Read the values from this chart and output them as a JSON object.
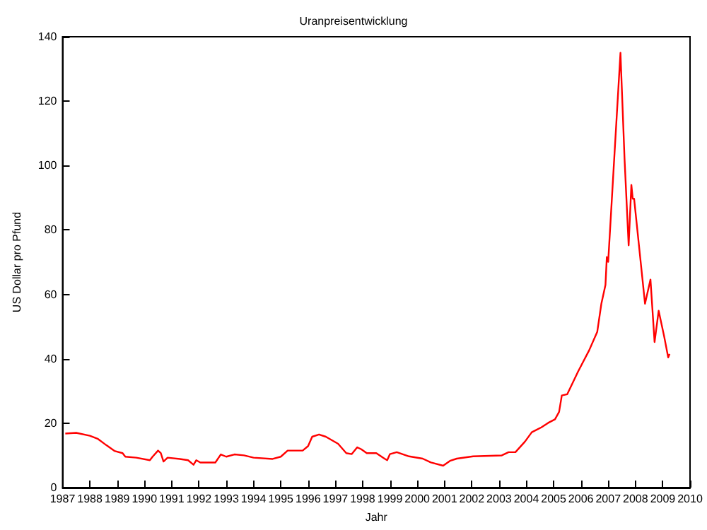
{
  "chart_data": {
    "type": "line",
    "title": "Uranpreisentwicklung",
    "xlabel": "Jahr",
    "ylabel": "US Dollar pro Pfund",
    "xlim": [
      1987,
      2010
    ],
    "xticks": [
      1987,
      1988,
      1989,
      1990,
      1991,
      1992,
      1993,
      1994,
      1995,
      1996,
      1997,
      1998,
      1999,
      2000,
      2001,
      2002,
      2003,
      2004,
      2005,
      2006,
      2007,
      2008,
      2009,
      2010
    ],
    "ylim": [
      0,
      140
    ],
    "yticks": [
      0,
      20,
      40,
      60,
      80,
      100,
      120,
      140
    ],
    "grid": false,
    "marker": "none",
    "line_style": "solid",
    "series": [
      {
        "color": "#ff0000",
        "x": [
          1987.1,
          1987.5,
          1988.0,
          1988.3,
          1988.6,
          1988.9,
          1989.2,
          1989.3,
          1989.7,
          1990.2,
          1990.3,
          1990.5,
          1990.6,
          1990.7,
          1990.85,
          1991.3,
          1991.6,
          1991.8,
          1991.9,
          1992.05,
          1992.6,
          1992.8,
          1993.0,
          1993.3,
          1993.65,
          1994.0,
          1994.7,
          1995.0,
          1995.25,
          1995.8,
          1996.0,
          1996.15,
          1996.4,
          1996.65,
          1997.1,
          1997.4,
          1997.6,
          1997.8,
          1997.95,
          1998.15,
          1998.5,
          1998.8,
          1998.9,
          1999.0,
          1999.25,
          1999.7,
          2000.2,
          2000.5,
          2000.95,
          2001.2,
          2001.45,
          2002.05,
          2003.1,
          2003.35,
          2003.6,
          2003.95,
          2004.2,
          2004.55,
          2004.8,
          2005.05,
          2005.2,
          2005.3,
          2005.5,
          2005.9,
          2006.3,
          2006.6,
          2006.75,
          2006.9,
          2006.95,
          2007.0,
          2007.2,
          2007.45,
          2007.6,
          2007.75,
          2007.85,
          2007.9,
          2007.95,
          2008.35,
          2008.55,
          2008.7,
          2008.85,
          2009.05,
          2009.2,
          2009.25
        ],
        "values": [
          16.8,
          17.0,
          16.1,
          15.1,
          13.2,
          11.4,
          10.7,
          9.6,
          9.3,
          8.5,
          9.6,
          11.5,
          10.7,
          8.1,
          9.3,
          8.9,
          8.5,
          7.1,
          8.5,
          7.8,
          7.8,
          10.3,
          9.6,
          10.3,
          10.0,
          9.3,
          8.9,
          9.6,
          11.5,
          11.5,
          12.9,
          15.8,
          16.5,
          15.8,
          13.6,
          10.7,
          10.4,
          12.5,
          11.9,
          10.7,
          10.7,
          9.0,
          8.5,
          10.4,
          11.0,
          9.7,
          9.0,
          7.8,
          6.8,
          8.3,
          9.0,
          9.7,
          10.0,
          11.0,
          11.0,
          14.3,
          17.2,
          18.7,
          20.1,
          21.2,
          23.5,
          28.6,
          29.0,
          36.1,
          42.6,
          48.4,
          57.1,
          62.9,
          71.6,
          70.1,
          99.1,
          135,
          102,
          75.2,
          94,
          89.7,
          89.7,
          57.1,
          64.6,
          45.2,
          54.9,
          47,
          40.4,
          41.5
        ]
      }
    ]
  }
}
